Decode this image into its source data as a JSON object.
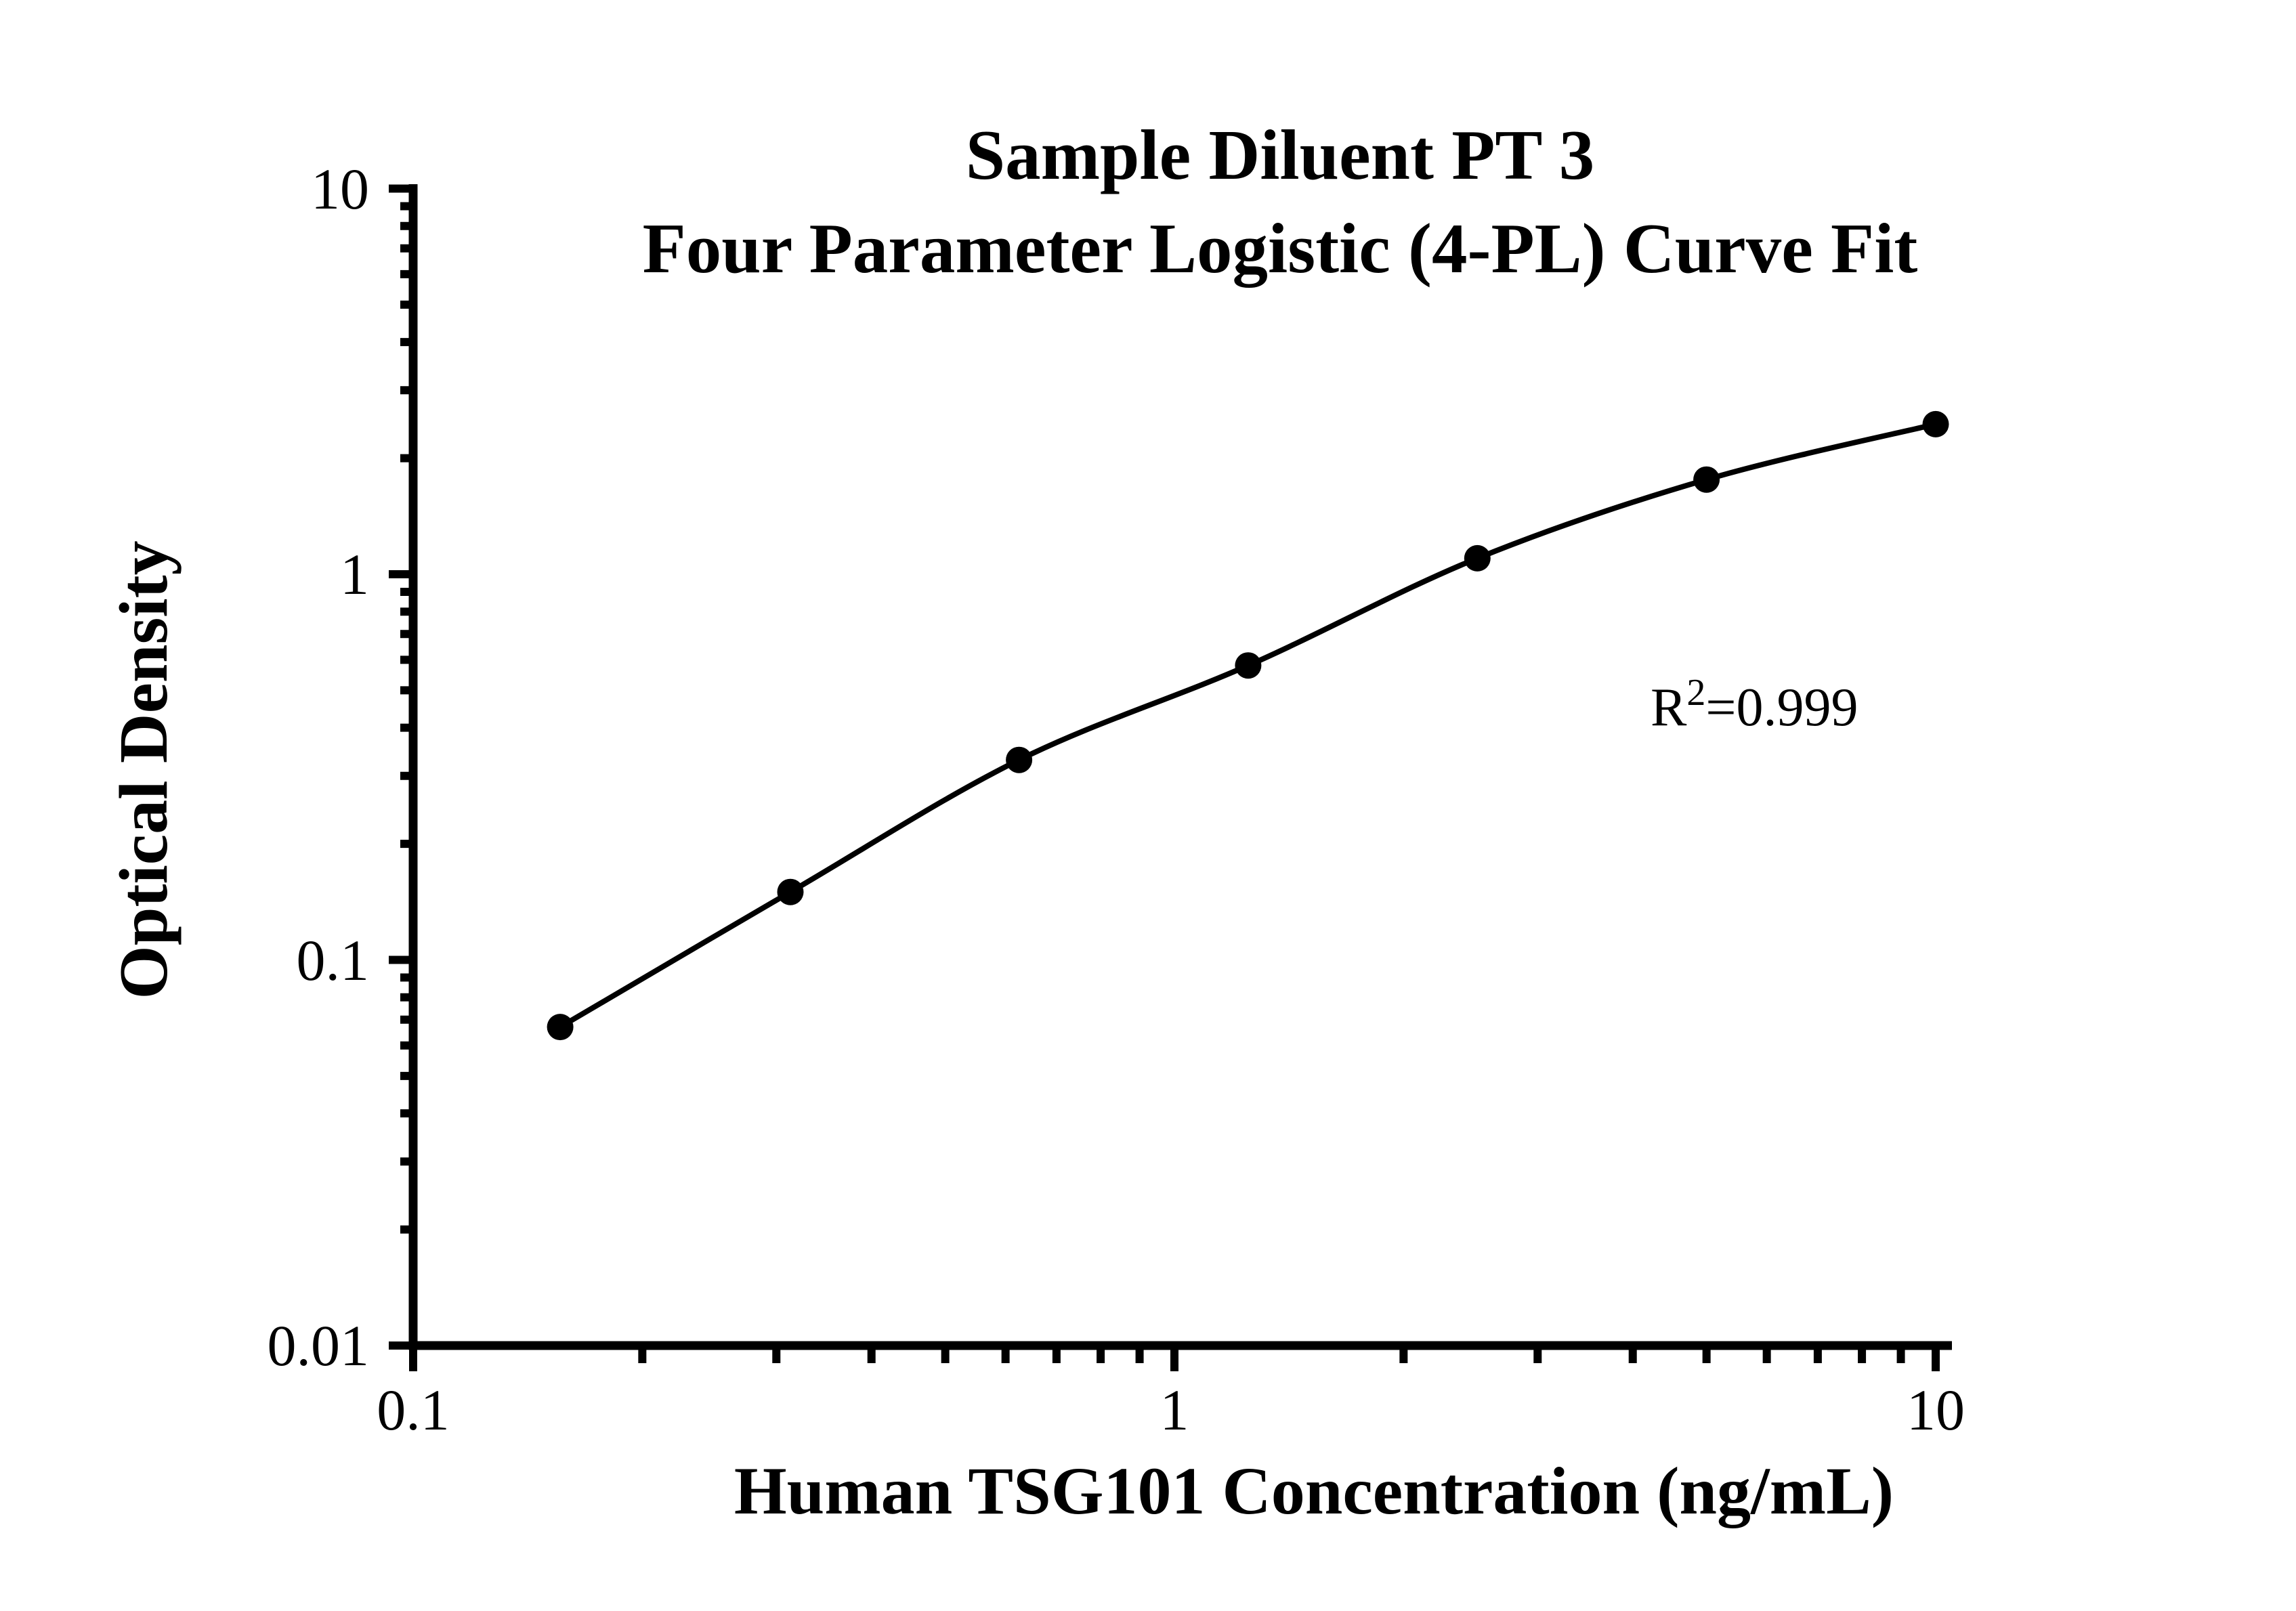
{
  "page": {
    "background_color": "#ffffff",
    "ink_color": "#000000"
  },
  "figure": {
    "title_line1": "Sample Diluent PT 3",
    "title_line2": "Four Parameter Logistic (4-PL) Curve Fit",
    "y_axis_title": "Optical Density",
    "x_axis_title": "Human TSG101 Concentration (ng/mL)",
    "annotation": {
      "base": "R",
      "superscript": "2",
      "rest": "=0.999"
    }
  },
  "chart_data": {
    "type": "scatter",
    "title": "Sample Diluent PT 3",
    "subtitle": "Four Parameter Logistic (4-PL) Curve Fit",
    "xlabel": "Human TSG101 Concentration (ng/mL)",
    "ylabel": "Optical Density",
    "x_scale": "log10",
    "y_scale": "log10",
    "xlim": [
      0.1,
      10
    ],
    "ylim": [
      0.01,
      10
    ],
    "grid": false,
    "legend_position": "none",
    "fit_type": "Four Parameter Logistic (4-PL)",
    "r_squared": 0.999,
    "x_ticks": [
      {
        "value": 0.1,
        "label": "0.1"
      },
      {
        "value": 1,
        "label": "1"
      },
      {
        "value": 10,
        "label": "10"
      }
    ],
    "y_ticks": [
      {
        "value": 10,
        "label": "10"
      },
      {
        "value": 1,
        "label": "1"
      },
      {
        "value": 0.1,
        "label": "0.1"
      },
      {
        "value": 0.01,
        "label": "0.01"
      }
    ],
    "series": [
      {
        "marker": "filled-circle",
        "color": "#000000",
        "line": "4PL-fit-curve",
        "points": [
          {
            "x": 0.156,
            "y": 0.067
          },
          {
            "x": 0.313,
            "y": 0.15
          },
          {
            "x": 0.625,
            "y": 0.33
          },
          {
            "x": 1.25,
            "y": 0.58
          },
          {
            "x": 2.5,
            "y": 1.1
          },
          {
            "x": 5,
            "y": 1.76
          },
          {
            "x": 10,
            "y": 2.45
          }
        ]
      }
    ]
  }
}
